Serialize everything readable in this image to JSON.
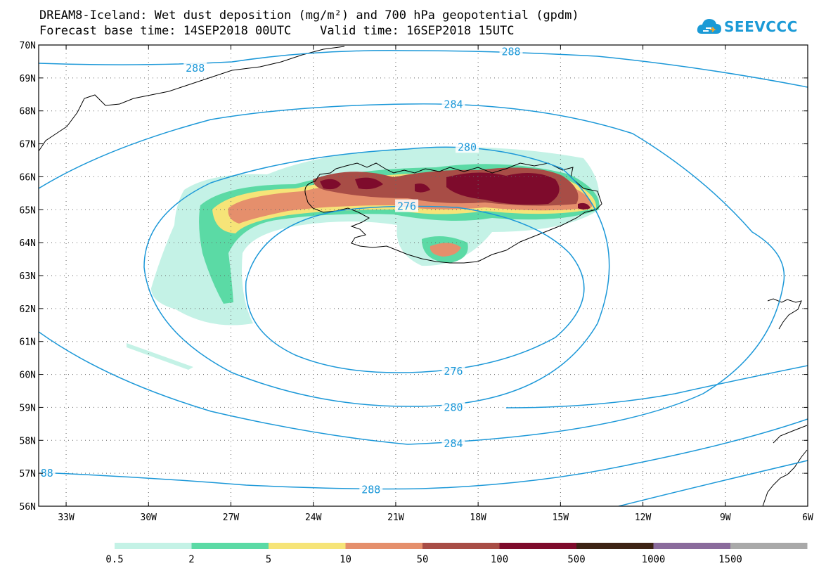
{
  "header": {
    "title_line1": "DREAM8-Iceland: Wet dust deposition (mg/m²) and 700 hPa geopotential (gpdm)",
    "title_line2": "Forecast base time: 14SEP2018 00UTC    Valid time: 16SEP2018 15UTC"
  },
  "logo": {
    "text": "SEEVCCC",
    "icon": "cloud-icon",
    "color": "#1a9ad6"
  },
  "map": {
    "projection": "lat-lon",
    "lon_range": [
      -34,
      -6
    ],
    "lat_range": [
      56,
      70
    ],
    "lat_labels": [
      "70N",
      "69N",
      "68N",
      "67N",
      "66N",
      "65N",
      "64N",
      "63N",
      "62N",
      "61N",
      "60N",
      "59N",
      "58N",
      "57N",
      "56N"
    ],
    "lon_labels": [
      "33W",
      "30W",
      "27W",
      "24W",
      "21W",
      "18W",
      "15W",
      "12W",
      "9W",
      "6W"
    ],
    "grid": "dotted",
    "contour_color": "#1c98d8",
    "contour_labels": [
      {
        "value": "288",
        "lon": -28.3,
        "lat": 69.3
      },
      {
        "value": "288",
        "lon": -16.8,
        "lat": 69.8
      },
      {
        "value": "284",
        "lon": -18.9,
        "lat": 68.2
      },
      {
        "value": "280",
        "lon": -18.4,
        "lat": 66.9
      },
      {
        "value": "276",
        "lon": -20.6,
        "lat": 65.1
      },
      {
        "value": "276",
        "lon": -18.9,
        "lat": 60.1
      },
      {
        "value": "280",
        "lon": -18.9,
        "lat": 59.0
      },
      {
        "value": "284",
        "lon": -18.9,
        "lat": 57.9
      },
      {
        "value": "288",
        "lon": -21.9,
        "lat": 56.5
      },
      {
        "value": "88",
        "lon": -33.7,
        "lat": 57.0
      }
    ]
  },
  "colorbar": {
    "labels": [
      "0.5",
      "2",
      "5",
      "10",
      "50",
      "100",
      "500",
      "1000",
      "1500"
    ],
    "colors": [
      "#c4f2e6",
      "#5bdaa5",
      "#f6e478",
      "#e58f6c",
      "#a84d46",
      "#7e0b2c",
      "#3d2315",
      "#8a6b9c",
      "#a9a9a9"
    ]
  }
}
